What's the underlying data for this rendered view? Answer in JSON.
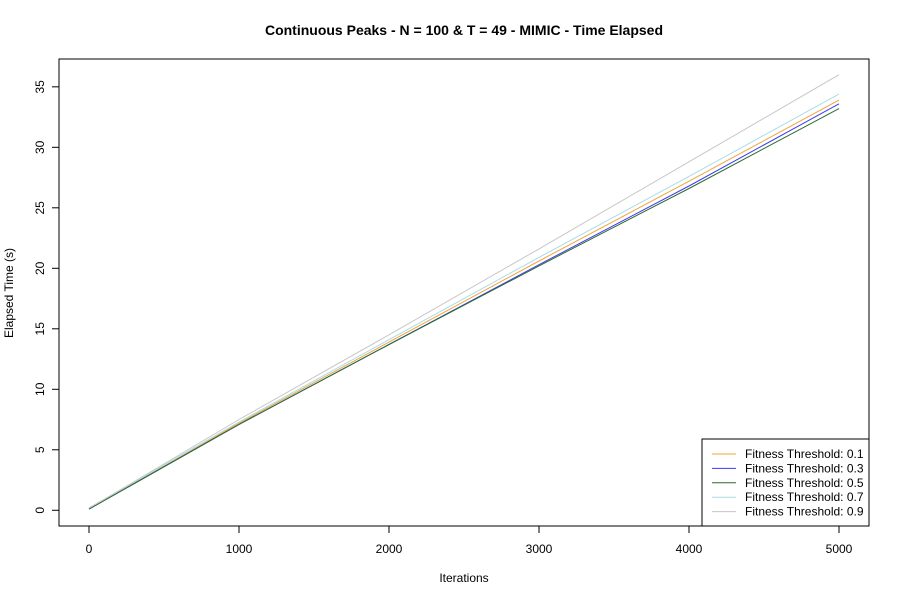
{
  "chart_data": {
    "type": "line",
    "title": "Continuous Peaks - N = 100 & T = 49 - MIMIC - Time Elapsed",
    "xlabel": "Iterations",
    "ylabel": "Elapsed Time (s)",
    "xlim": [
      -200,
      5200
    ],
    "ylim": [
      -1.3,
      37.3
    ],
    "xticks": [
      0,
      1000,
      2000,
      3000,
      4000,
      5000
    ],
    "yticks": [
      0,
      5,
      10,
      15,
      20,
      25,
      30,
      35
    ],
    "legend_position": "bottom-right",
    "grid": false,
    "series": [
      {
        "name": "Fitness Threshold: 0.1",
        "color": "#f2a33a",
        "x": [
          0,
          100,
          1000,
          2000,
          3000,
          4000,
          5000
        ],
        "y": [
          0.1,
          0.8,
          7.2,
          13.9,
          20.6,
          27.2,
          33.9
        ]
      },
      {
        "name": "Fitness Threshold: 0.3",
        "color": "#3b3bf0",
        "x": [
          0,
          100,
          1000,
          2000,
          3000,
          4000,
          5000
        ],
        "y": [
          0.1,
          0.8,
          7.1,
          13.7,
          20.3,
          26.8,
          33.6
        ]
      },
      {
        "name": "Fitness Threshold: 0.5",
        "color": "#2e6b2e",
        "x": [
          0,
          100,
          1000,
          2000,
          3000,
          4000,
          5000
        ],
        "y": [
          0.1,
          0.8,
          7.1,
          13.7,
          20.2,
          26.6,
          33.2
        ]
      },
      {
        "name": "Fitness Threshold: 0.7",
        "color": "#a9dbe8",
        "x": [
          0,
          100,
          1000,
          2000,
          3000,
          4000,
          5000
        ],
        "y": [
          0.2,
          0.9,
          7.3,
          14.1,
          20.9,
          27.6,
          34.4
        ]
      },
      {
        "name": "Fitness Threshold: 0.9",
        "color": "#c7c7c7",
        "x": [
          0,
          100,
          1000,
          2000,
          3000,
          4000,
          5000
        ],
        "y": [
          0.2,
          0.9,
          7.5,
          14.5,
          21.6,
          28.8,
          36.0
        ]
      }
    ]
  }
}
